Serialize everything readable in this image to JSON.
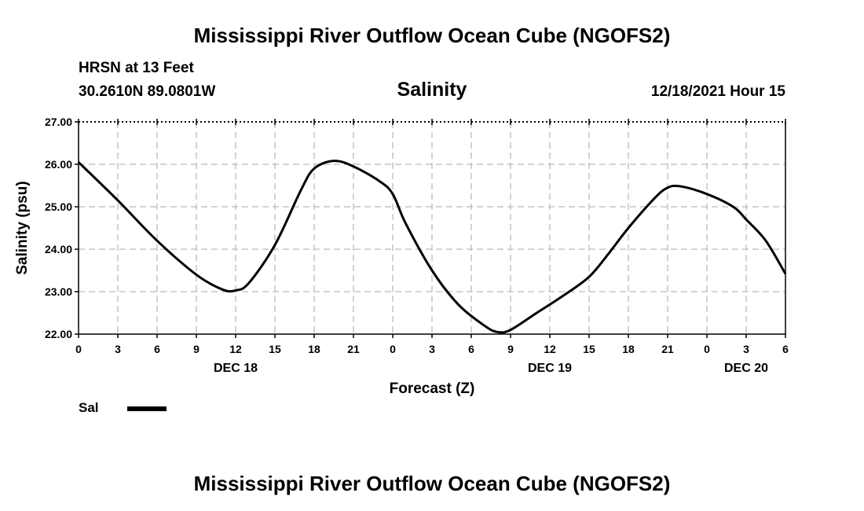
{
  "page_title": "Mississippi River Outflow Ocean Cube (NGOFS2)",
  "footer_title": "Mississippi River Outflow Ocean Cube (NGOFS2)",
  "station": {
    "name": "HRSN at 13 Feet",
    "coords": "30.2610N  89.0801W",
    "datetime": "12/18/2021 Hour 15"
  },
  "chart_data": {
    "type": "line",
    "title": "Salinity",
    "xlabel": "Forecast (Z)",
    "ylabel": "Salinity (psu)",
    "ylim": [
      22,
      27
    ],
    "yticks": [
      "22.00",
      "23.00",
      "24.00",
      "25.00",
      "26.00",
      "27.00"
    ],
    "xlim": [
      0,
      54
    ],
    "xticks": [
      "0",
      "3",
      "6",
      "9",
      "12",
      "15",
      "18",
      "21",
      "0",
      "3",
      "6",
      "9",
      "12",
      "15",
      "18",
      "21",
      "0",
      "3",
      "6"
    ],
    "day_labels": [
      {
        "label": "DEC 18",
        "hour": 12
      },
      {
        "label": "DEC 19",
        "hour": 36
      },
      {
        "label": "DEC 20",
        "hour": 51
      }
    ],
    "grid": true,
    "legend": "bottom-left",
    "series": [
      {
        "name": "Sal",
        "color": "#000000",
        "x": [
          0,
          3,
          6,
          9,
          11,
          12,
          13,
          15,
          17,
          18,
          19.5,
          21,
          23,
          24,
          25,
          27,
          29,
          31,
          32,
          33,
          35,
          37,
          39,
          40.5,
          42,
          44,
          45,
          46,
          48,
          50,
          51,
          52.5,
          54
        ],
        "values": [
          26.05,
          25.15,
          24.2,
          23.4,
          23.05,
          23.03,
          23.2,
          24.1,
          25.4,
          25.9,
          26.08,
          25.95,
          25.6,
          25.3,
          24.6,
          23.5,
          22.7,
          22.2,
          22.05,
          22.1,
          22.5,
          22.9,
          23.35,
          23.9,
          24.5,
          25.2,
          25.45,
          25.48,
          25.3,
          25.0,
          24.7,
          24.2,
          23.42
        ]
      }
    ]
  }
}
